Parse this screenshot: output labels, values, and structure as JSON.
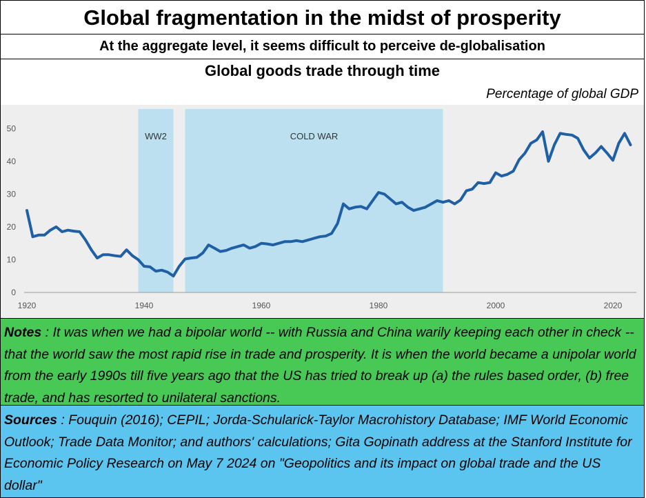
{
  "header": {
    "title": "Global fragmentation in the midst of prosperity",
    "subtitle": "At the aggregate level, it seems difficult to perceive de-globalisation",
    "chart_title": "Global goods trade through time",
    "unit_label": "Percentage of global GDP"
  },
  "notes": {
    "lead": "Notes",
    "text": " : It was when we had a bipolar world -- with Russia and China warily keeping each other in check -- that the world saw the most rapid rise in trade and prosperity.  It is when the world became a unipolar world  from the early 1990s till five years ago that the US has tried to break up (a) the rules based order, (b) free trade, and has resorted to unilateral sanctions."
  },
  "sources": {
    "lead": "Sources",
    "text": " : Fouquin (2016); CEPIL; Jorda-Schularick-Taylor Macrohistory Database; IMF World Economic Outlook; Trade Data Monitor; and authors' calculations; Gita Gopinath address at the Stanford Institute for Economic Policy Research on May 7 2024 on \"Geopolitics and its impact on global trade and the US dollar\""
  },
  "colors": {
    "line": "#1f5fa6",
    "band": "#bde0f0",
    "notes_bg": "#48c855",
    "sources_bg": "#5bc4ef"
  },
  "chart_data": {
    "type": "line",
    "title": "Global goods trade through time",
    "ylabel": "Percentage of global GDP",
    "xlim": [
      1920,
      2024
    ],
    "ylim": [
      0,
      53
    ],
    "x_ticks": [
      1920,
      1940,
      1960,
      1980,
      2000,
      2020
    ],
    "y_ticks": [
      0,
      10,
      20,
      30,
      40,
      50
    ],
    "grid": false,
    "shaded_periods": [
      {
        "label": "WW2",
        "start": 1939,
        "end": 1945
      },
      {
        "label": "COLD WAR",
        "start": 1947,
        "end": 1991
      }
    ],
    "series": [
      {
        "x": [
          1920,
          1921,
          1922,
          1923,
          1924,
          1925,
          1926,
          1927,
          1928,
          1929,
          1930,
          1931,
          1932,
          1933,
          1934,
          1935,
          1936,
          1937,
          1938,
          1939,
          1940,
          1941,
          1942,
          1943,
          1944,
          1945,
          1946,
          1947,
          1948,
          1949,
          1950,
          1951,
          1952,
          1953,
          1954,
          1955,
          1956,
          1957,
          1958,
          1959,
          1960,
          1961,
          1962,
          1963,
          1964,
          1965,
          1966,
          1967,
          1968,
          1969,
          1970,
          1971,
          1972,
          1973,
          1974,
          1975,
          1976,
          1977,
          1978,
          1979,
          1980,
          1981,
          1982,
          1983,
          1984,
          1985,
          1986,
          1987,
          1988,
          1989,
          1990,
          1991,
          1992,
          1993,
          1994,
          1995,
          1996,
          1997,
          1998,
          1999,
          2000,
          2001,
          2002,
          2003,
          2004,
          2005,
          2006,
          2007,
          2008,
          2009,
          2010,
          2011,
          2012,
          2013,
          2014,
          2015,
          2016,
          2017,
          2018,
          2019,
          2020,
          2021,
          2022,
          2023
        ],
        "values": [
          25,
          17,
          17.5,
          17.5,
          19,
          20,
          18.5,
          19,
          18.7,
          18.5,
          16,
          13,
          10.5,
          11.5,
          11.5,
          11.2,
          11,
          13,
          11.2,
          10,
          8,
          7.8,
          6.5,
          6.8,
          6.2,
          5,
          8,
          10.2,
          10.5,
          10.7,
          12,
          14.5,
          13.5,
          12.5,
          12.8,
          13.5,
          14,
          14.5,
          13.5,
          14,
          15,
          14.8,
          14.5,
          15,
          15.5,
          15.5,
          15.8,
          15.5,
          16,
          16.5,
          17,
          17.2,
          18,
          21,
          27,
          25.5,
          26,
          26.2,
          25.5,
          28,
          30.5,
          30,
          28.5,
          27,
          27.5,
          26,
          25,
          25.5,
          26,
          27,
          28,
          27.5,
          28,
          27,
          28.2,
          31,
          31.5,
          33.5,
          33.2,
          33.5,
          36.5,
          35.5,
          36,
          37,
          40.5,
          42.5,
          45.5,
          46.5,
          49,
          40,
          45,
          48.5,
          48.2,
          48,
          47,
          43.5,
          41,
          42.5,
          44.5,
          42.5,
          40.3,
          45.5,
          48.5,
          45
        ]
      }
    ]
  }
}
